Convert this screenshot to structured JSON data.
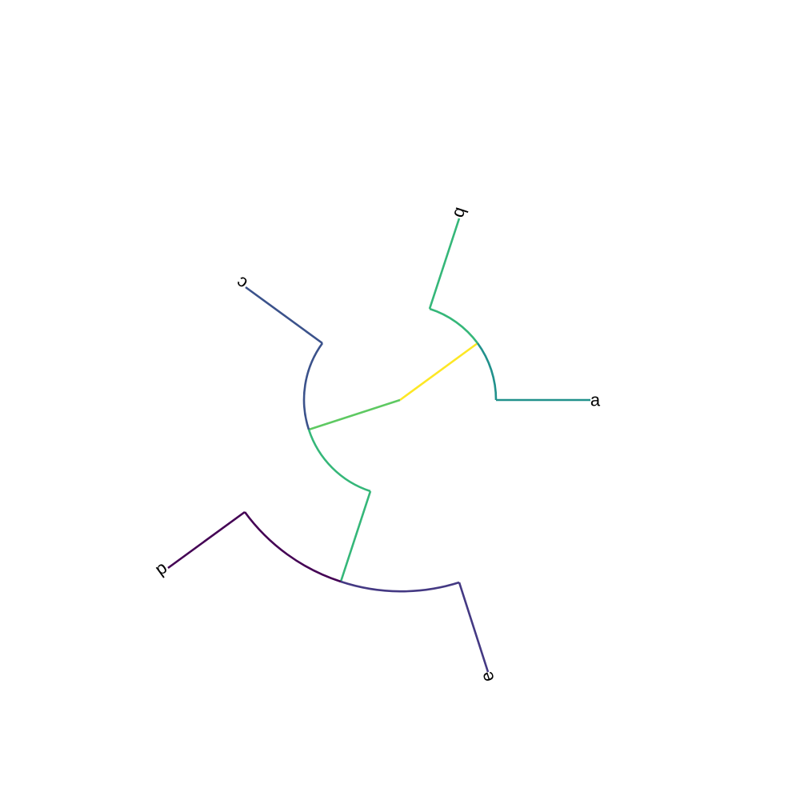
{
  "tree": {
    "layout": "radial",
    "tips": [
      {
        "id": "a",
        "label": "a",
        "color": "#21918c"
      },
      {
        "id": "b",
        "label": "b",
        "color": "#35b779"
      },
      {
        "id": "c",
        "label": "c",
        "color": "#3b528b"
      },
      {
        "id": "d",
        "label": "d",
        "color": "#440154"
      },
      {
        "id": "e",
        "label": "e",
        "color": "#443983"
      }
    ],
    "internal_colors": {
      "root_ab": "#fde725",
      "root_cde": "#5ec962",
      "cde_de": "#35b779"
    }
  }
}
